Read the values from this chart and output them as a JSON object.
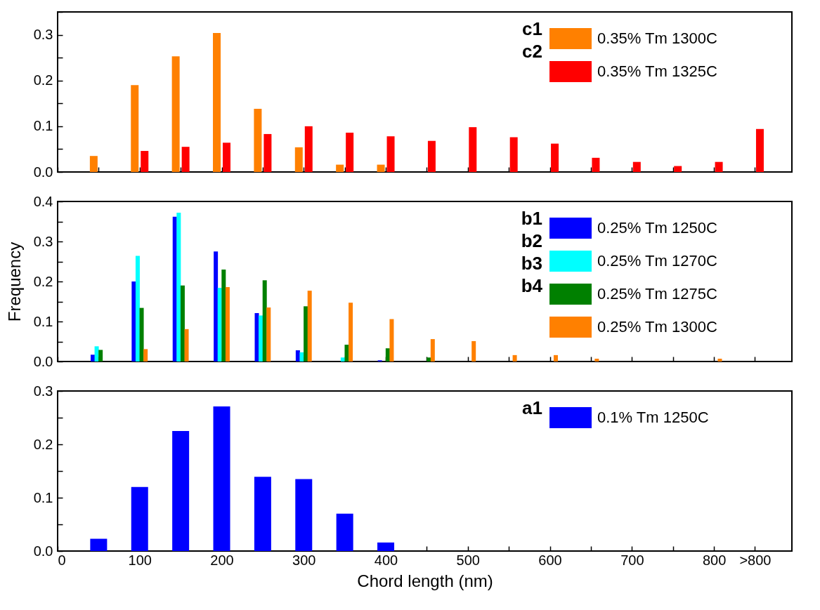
{
  "chart_data": [
    {
      "type": "bar",
      "legend": "top right",
      "tick_labels": "y",
      "annotations": [
        "c1",
        "c2"
      ],
      "xlim": [
        0,
        895
      ],
      "xticks": [
        0,
        {
          "value": 50,
          "label": null
        },
        100,
        {
          "value": 150,
          "label": null
        },
        200,
        {
          "value": 250,
          "label": null
        },
        300,
        {
          "value": 350,
          "label": null
        },
        400,
        {
          "value": 450,
          "label": null
        },
        500,
        {
          "value": 550,
          "label": null
        },
        600,
        {
          "value": 650,
          "label": null
        },
        700,
        {
          "value": 750,
          "label": null
        },
        800,
        {
          "value": 850,
          "label": null
        }
      ],
      "ylim": [
        0,
        0.35
      ],
      "yticks": [
        {
          "value": 0,
          "label": "0.0"
        },
        {
          "value": 0.05,
          "label": null
        },
        0.1,
        {
          "value": 0.15,
          "label": null
        },
        0.2,
        {
          "value": 0.25,
          "label": null
        },
        0.3,
        {
          "value": 0.35,
          "label": null
        }
      ],
      "series": [
        {
          "name": "0.35% Tm 1300C",
          "color": "#ff8000",
          "x": [
            50,
            100,
            150,
            200,
            250,
            300,
            350,
            400
          ],
          "values": [
            0.035,
            0.19,
            0.253,
            0.304,
            0.138,
            0.054,
            0.016,
            0.016
          ]
        },
        {
          "name": "0.35% Tm 1325C",
          "color": "#ff0000",
          "x": [
            100,
            150,
            200,
            250,
            300,
            350,
            400,
            450,
            500,
            550,
            600,
            650,
            700,
            750,
            800,
            850
          ],
          "values": [
            0.046,
            0.055,
            0.064,
            0.083,
            0.1,
            0.086,
            0.078,
            0.068,
            0.098,
            0.076,
            0.062,
            0.031,
            0.022,
            0.013,
            0.022,
            0.094
          ]
        }
      ]
    },
    {
      "type": "bar",
      "legend": "top right",
      "tick_labels": "y",
      "ylabel": "Frequency",
      "annotations": [
        "b1",
        "b2",
        "b3",
        "b4"
      ],
      "xlim": [
        0,
        895
      ],
      "xticks": [
        0,
        {
          "value": 50,
          "label": null
        },
        100,
        {
          "value": 150,
          "label": null
        },
        200,
        {
          "value": 250,
          "label": null
        },
        300,
        {
          "value": 350,
          "label": null
        },
        400,
        {
          "value": 450,
          "label": null
        },
        500,
        {
          "value": 550,
          "label": null
        },
        600,
        {
          "value": 650,
          "label": null
        },
        700,
        {
          "value": 750,
          "label": null
        },
        800,
        {
          "value": 850,
          "label": null
        }
      ],
      "ylim": [
        0,
        0.4
      ],
      "yticks": [
        {
          "value": 0,
          "label": "0.0"
        },
        {
          "value": 0.05,
          "label": null
        },
        0.1,
        {
          "value": 0.15,
          "label": null
        },
        0.2,
        {
          "value": 0.25,
          "label": null
        },
        0.3,
        {
          "value": 0.35,
          "label": null
        },
        0.4
      ],
      "series": [
        {
          "name": "0.25% Tm 1250C",
          "color": "#0000ff",
          "x": [
            50,
            100,
            150,
            200,
            250,
            300,
            400
          ],
          "values": [
            0.017,
            0.2,
            0.362,
            0.275,
            0.121,
            0.028,
            0.003
          ]
        },
        {
          "name": "0.25% Tm 1270C",
          "color": "#00ffff",
          "x": [
            50,
            100,
            150,
            200,
            250,
            300,
            350
          ],
          "values": [
            0.038,
            0.264,
            0.372,
            0.184,
            0.115,
            0.023,
            0.01
          ]
        },
        {
          "name": "0.25% Tm 1275C",
          "color": "#008000",
          "x": [
            50,
            100,
            150,
            200,
            250,
            300,
            350,
            400,
            450
          ],
          "values": [
            0.029,
            0.134,
            0.19,
            0.23,
            0.203,
            0.138,
            0.042,
            0.033,
            0.01
          ]
        },
        {
          "name": "0.25% Tm 1300C",
          "color": "#ff8000",
          "x": [
            100,
            150,
            200,
            250,
            300,
            350,
            400,
            450,
            500,
            550,
            600,
            650,
            800
          ],
          "values": [
            0.031,
            0.081,
            0.186,
            0.135,
            0.177,
            0.147,
            0.106,
            0.056,
            0.051,
            0.016,
            0.016,
            0.007,
            0.007
          ]
        }
      ]
    },
    {
      "type": "bar",
      "legend": "top right",
      "xlabel": "Chord length (nm)",
      "annotations": [
        "a1"
      ],
      "xlim": [
        0,
        895
      ],
      "xticks": [
        0,
        {
          "value": 50,
          "label": null
        },
        100,
        {
          "value": 150,
          "label": null
        },
        200,
        {
          "value": 250,
          "label": null
        },
        300,
        {
          "value": 350,
          "label": null
        },
        400,
        {
          "value": 450,
          "label": null
        },
        500,
        {
          "value": 550,
          "label": null
        },
        600,
        {
          "value": 650,
          "label": null
        },
        700,
        {
          "value": 750,
          "label": null
        },
        800,
        {
          "value": 850,
          "label": ">800"
        }
      ],
      "ylim": [
        0,
        0.3
      ],
      "yticks": [
        {
          "value": 0,
          "label": "0.0"
        },
        {
          "value": 0.05,
          "label": null
        },
        0.1,
        {
          "value": 0.15,
          "label": null
        },
        0.2,
        {
          "value": 0.25,
          "label": null
        },
        0.3
      ],
      "series": [
        {
          "name": "0.1% Tm 1250C",
          "color": "#0000ff",
          "x": [
            50,
            100,
            150,
            200,
            250,
            300,
            350,
            400
          ],
          "values": [
            0.023,
            0.12,
            0.225,
            0.271,
            0.139,
            0.135,
            0.07,
            0.016
          ]
        }
      ]
    }
  ]
}
